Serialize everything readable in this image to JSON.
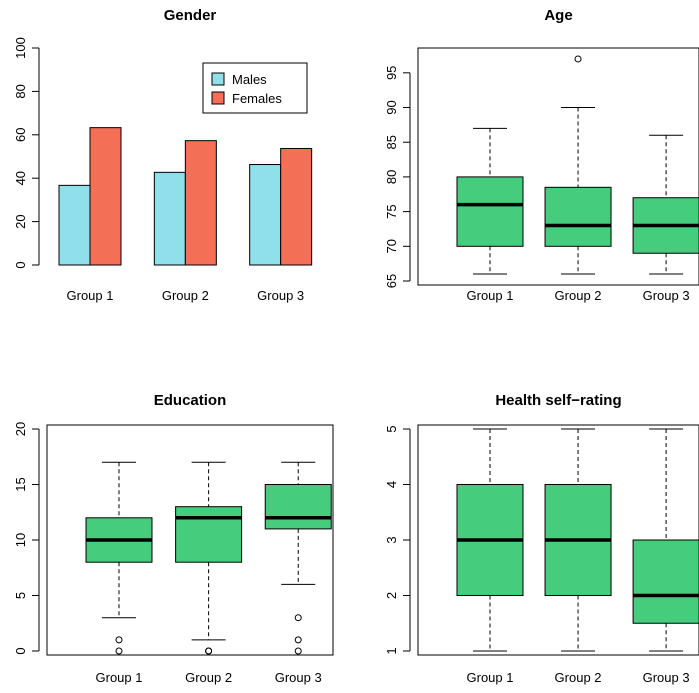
{
  "colors": {
    "males": "#8FE0EB",
    "females": "#F36F56",
    "box": "#45CC7C",
    "stroke": "#000000"
  },
  "chart_data": [
    {
      "type": "bar",
      "title": "Gender",
      "categories": [
        "Group 1",
        "Group 2",
        "Group 3"
      ],
      "series": [
        {
          "name": "Males",
          "values": [
            36.7,
            42.7,
            46.3
          ]
        },
        {
          "name": "Females",
          "values": [
            63.3,
            57.3,
            53.7
          ]
        }
      ],
      "ylim": [
        0,
        100
      ],
      "yticks": [
        0,
        20,
        40,
        60,
        80,
        100
      ],
      "legend": "top-right",
      "grid": false
    },
    {
      "type": "box",
      "title": "Age",
      "categories": [
        "Group 1",
        "Group 2",
        "Group 3"
      ],
      "boxes": [
        {
          "min": 66,
          "q1": 70,
          "median": 76,
          "q3": 80,
          "max": 87,
          "outliers": []
        },
        {
          "min": 66,
          "q1": 70,
          "median": 73,
          "q3": 78.5,
          "max": 90,
          "outliers": [
            97
          ]
        },
        {
          "min": 66,
          "q1": 69,
          "median": 73,
          "q3": 77,
          "max": 86,
          "outliers": []
        }
      ],
      "ylim": [
        65,
        98
      ],
      "yticks": [
        65,
        70,
        75,
        80,
        85,
        90,
        95
      ],
      "grid": false
    },
    {
      "type": "box",
      "title": "Education",
      "categories": [
        "Group 1",
        "Group 2",
        "Group 3"
      ],
      "boxes": [
        {
          "min": 3,
          "q1": 8,
          "median": 10,
          "q3": 12,
          "max": 17,
          "outliers": [
            1,
            0
          ]
        },
        {
          "min": 1,
          "q1": 8,
          "median": 12,
          "q3": 13,
          "max": 17,
          "outliers": [
            0,
            0
          ]
        },
        {
          "min": 6,
          "q1": 11,
          "median": 12,
          "q3": 15,
          "max": 17,
          "outliers": [
            3,
            1,
            0
          ]
        }
      ],
      "ylim": [
        0,
        20
      ],
      "yticks": [
        0,
        5,
        10,
        15,
        20
      ],
      "grid": false
    },
    {
      "type": "box",
      "title": "Health self−rating",
      "categories": [
        "Group 1",
        "Group 2",
        "Group 3"
      ],
      "boxes": [
        {
          "min": 1,
          "q1": 2,
          "median": 3,
          "q3": 4,
          "max": 5,
          "outliers": []
        },
        {
          "min": 1,
          "q1": 2,
          "median": 3,
          "q3": 4,
          "max": 5,
          "outliers": []
        },
        {
          "min": 1,
          "q1": 1.5,
          "median": 2,
          "q3": 3,
          "max": 5,
          "outliers": []
        }
      ],
      "ylim": [
        1,
        5
      ],
      "yticks": [
        1,
        2,
        3,
        4,
        5
      ],
      "grid": false
    }
  ]
}
